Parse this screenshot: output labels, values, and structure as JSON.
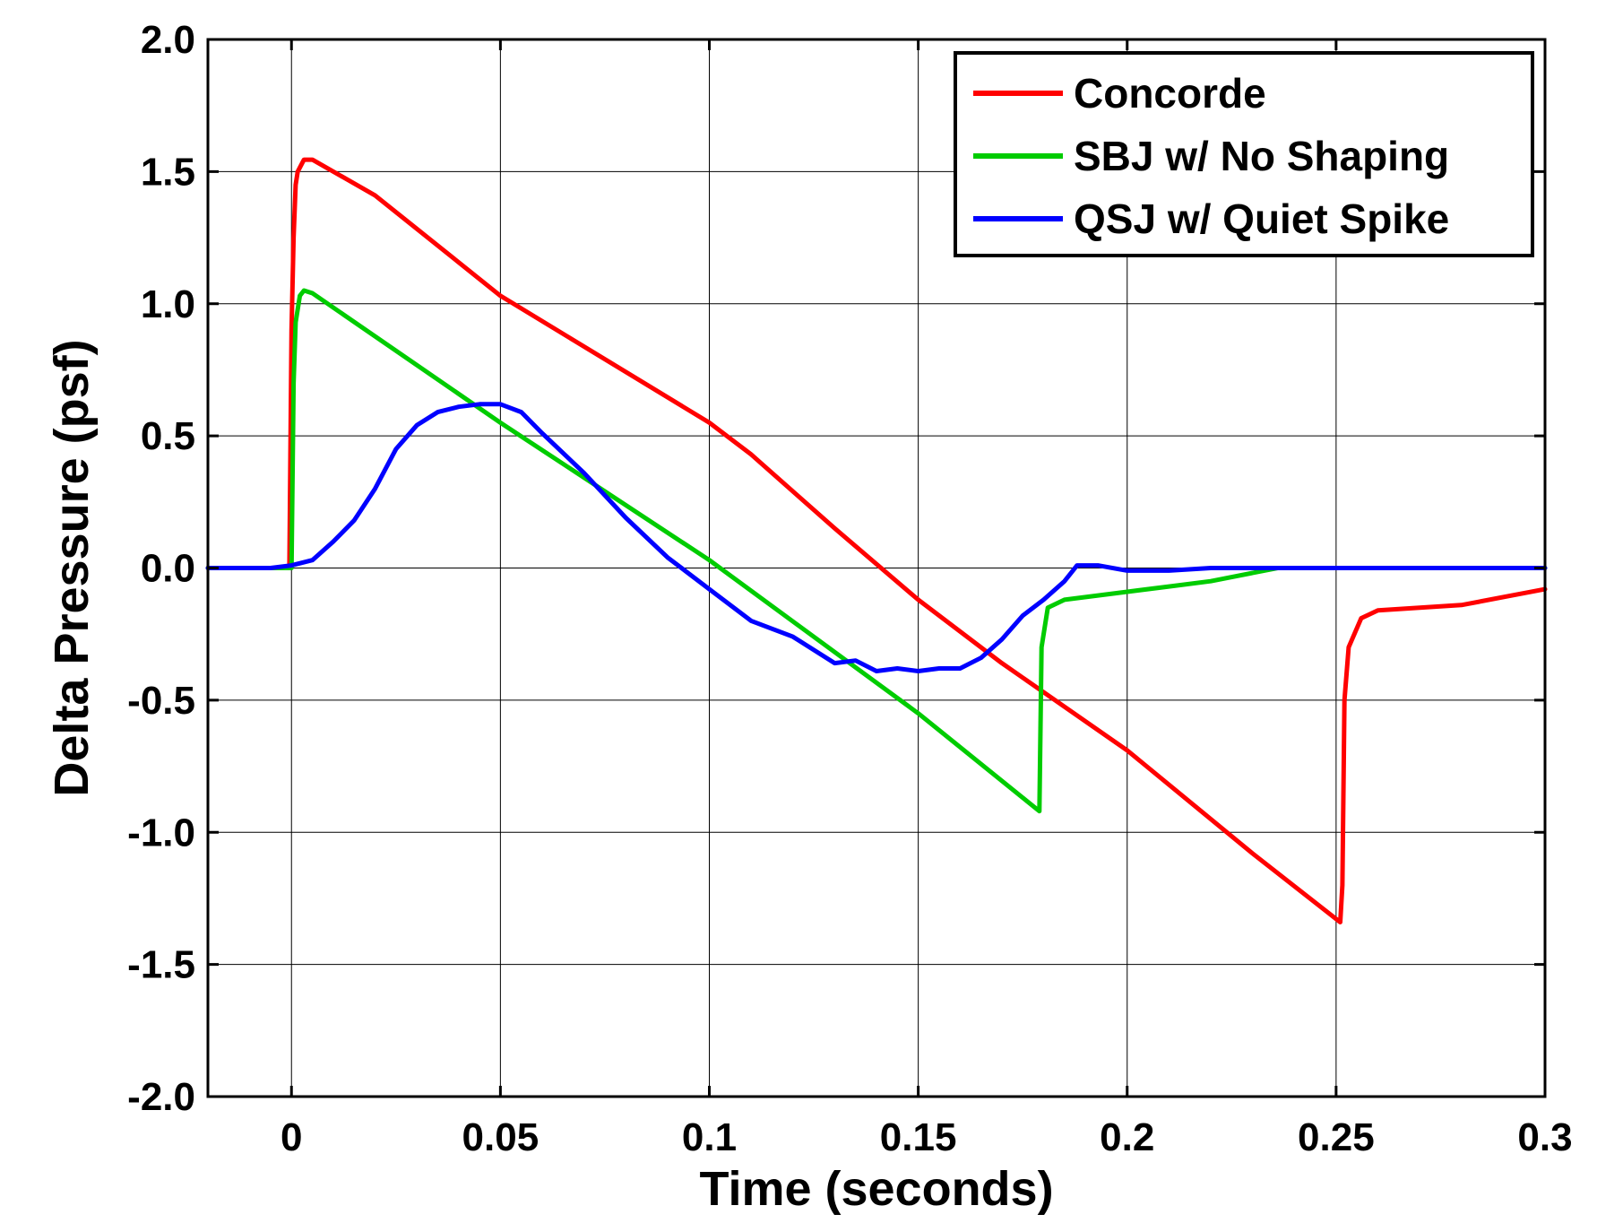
{
  "chart_data": {
    "type": "line",
    "title": "",
    "xlabel": "Time (seconds)",
    "ylabel": "Delta Pressure (psf)",
    "xlim": [
      -0.02,
      0.3
    ],
    "ylim": [
      -2.0,
      2.0
    ],
    "xticks": [
      0,
      0.05,
      0.1,
      0.15,
      0.2,
      0.25,
      0.3
    ],
    "xtick_labels": [
      "0",
      "0.05",
      "0.1",
      "0.15",
      "0.2",
      "0.25",
      "0.3"
    ],
    "yticks": [
      2.0,
      1.5,
      1.0,
      0.5,
      0.0,
      -0.5,
      -1.0,
      -1.5,
      -2.0
    ],
    "ytick_labels": [
      "2.0",
      "1.5",
      "1.0",
      "0.5",
      "0.0",
      "-0.5",
      "-1.0",
      "-1.5",
      "-2.0"
    ],
    "grid": true,
    "legend_position": "top-right",
    "series": [
      {
        "name": "Concorde",
        "color": "#ff0000",
        "points": [
          [
            -0.02,
            0.0
          ],
          [
            -0.0005,
            0.0
          ],
          [
            0.0,
            0.9
          ],
          [
            0.0005,
            1.25
          ],
          [
            0.001,
            1.45
          ],
          [
            0.0015,
            1.5
          ],
          [
            0.003,
            1.545
          ],
          [
            0.005,
            1.545
          ],
          [
            0.02,
            1.41
          ],
          [
            0.05,
            1.03
          ],
          [
            0.1,
            0.55
          ],
          [
            0.11,
            0.43
          ],
          [
            0.13,
            0.15
          ],
          [
            0.15,
            -0.12
          ],
          [
            0.17,
            -0.36
          ],
          [
            0.2,
            -0.69
          ],
          [
            0.23,
            -1.08
          ],
          [
            0.251,
            -1.34
          ],
          [
            0.2515,
            -1.2
          ],
          [
            0.252,
            -0.5
          ],
          [
            0.253,
            -0.3
          ],
          [
            0.256,
            -0.19
          ],
          [
            0.26,
            -0.16
          ],
          [
            0.28,
            -0.14
          ],
          [
            0.3,
            -0.08
          ]
        ]
      },
      {
        "name": "SBJ w/ No Shaping",
        "color": "#00cc00",
        "points": [
          [
            -0.02,
            0.0
          ],
          [
            0.0,
            0.0
          ],
          [
            0.0005,
            0.7
          ],
          [
            0.001,
            0.93
          ],
          [
            0.002,
            1.03
          ],
          [
            0.003,
            1.05
          ],
          [
            0.005,
            1.04
          ],
          [
            0.05,
            0.55
          ],
          [
            0.1,
            0.03
          ],
          [
            0.15,
            -0.55
          ],
          [
            0.179,
            -0.92
          ],
          [
            0.1795,
            -0.3
          ],
          [
            0.181,
            -0.15
          ],
          [
            0.185,
            -0.12
          ],
          [
            0.2,
            -0.09
          ],
          [
            0.21,
            -0.07
          ],
          [
            0.22,
            -0.05
          ],
          [
            0.236,
            0.0
          ],
          [
            0.3,
            0.0
          ]
        ]
      },
      {
        "name": "QSJ w/ Quiet Spike",
        "color": "#0000ff",
        "points": [
          [
            -0.02,
            0.0
          ],
          [
            -0.005,
            0.0
          ],
          [
            0.0,
            0.01
          ],
          [
            0.005,
            0.03
          ],
          [
            0.01,
            0.1
          ],
          [
            0.015,
            0.18
          ],
          [
            0.02,
            0.3
          ],
          [
            0.025,
            0.45
          ],
          [
            0.03,
            0.54
          ],
          [
            0.035,
            0.59
          ],
          [
            0.04,
            0.61
          ],
          [
            0.045,
            0.62
          ],
          [
            0.05,
            0.62
          ],
          [
            0.055,
            0.59
          ],
          [
            0.06,
            0.51
          ],
          [
            0.07,
            0.36
          ],
          [
            0.08,
            0.19
          ],
          [
            0.09,
            0.04
          ],
          [
            0.1,
            -0.08
          ],
          [
            0.11,
            -0.2
          ],
          [
            0.12,
            -0.26
          ],
          [
            0.13,
            -0.36
          ],
          [
            0.135,
            -0.35
          ],
          [
            0.14,
            -0.39
          ],
          [
            0.145,
            -0.38
          ],
          [
            0.15,
            -0.39
          ],
          [
            0.155,
            -0.38
          ],
          [
            0.16,
            -0.38
          ],
          [
            0.165,
            -0.34
          ],
          [
            0.17,
            -0.27
          ],
          [
            0.175,
            -0.18
          ],
          [
            0.18,
            -0.12
          ],
          [
            0.185,
            -0.05
          ],
          [
            0.188,
            0.01
          ],
          [
            0.19,
            0.01
          ],
          [
            0.193,
            0.01
          ],
          [
            0.2,
            -0.01
          ],
          [
            0.21,
            -0.01
          ],
          [
            0.22,
            0.0
          ],
          [
            0.3,
            0.0
          ]
        ]
      }
    ]
  }
}
